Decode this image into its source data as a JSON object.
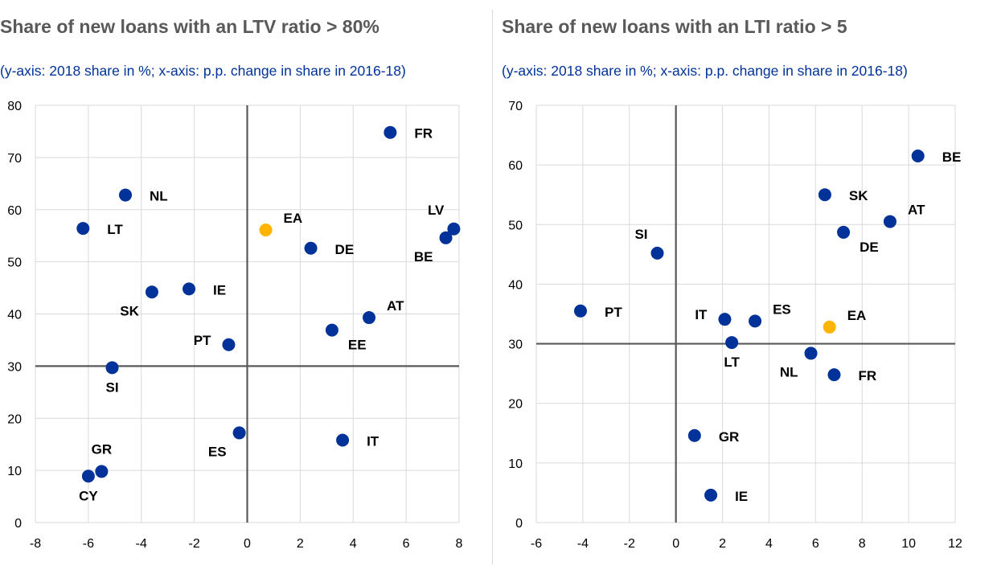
{
  "chart_data": [
    {
      "type": "scatter",
      "title": "Share of new loans with an LTV ratio > 80%",
      "subtitle": "(y-axis: 2018 share in %; x-axis: p.p. change in share in 2016-18)",
      "xlim": [
        -8,
        8
      ],
      "ylim": [
        0,
        80
      ],
      "x_ticks": [
        -8,
        -6,
        -4,
        -2,
        0,
        2,
        4,
        6,
        8
      ],
      "y_ticks": [
        0,
        10,
        20,
        30,
        40,
        50,
        60,
        70,
        80
      ],
      "grid": true,
      "reference_lines": {
        "x": 0,
        "y": 30
      },
      "colors": {
        "country": "#003299",
        "euro_area": "#FFB400",
        "grid": "#d9d9d9",
        "axis_line": "#595959"
      },
      "points": [
        {
          "label": "FR",
          "x": 5.4,
          "y": 74.8,
          "label_pos": "right"
        },
        {
          "label": "NL",
          "x": -4.6,
          "y": 62.8,
          "label_pos": "right"
        },
        {
          "label": "LT",
          "x": -6.2,
          "y": 56.4,
          "label_pos": "right"
        },
        {
          "label": "EA",
          "x": 0.7,
          "y": 56.1,
          "label_pos": "above-right",
          "highlight": true
        },
        {
          "label": "LV",
          "x": 7.8,
          "y": 56.3,
          "label_pos": "above-left"
        },
        {
          "label": "BE",
          "x": 7.5,
          "y": 54.6,
          "label_pos": "below-left"
        },
        {
          "label": "DE",
          "x": 2.4,
          "y": 52.6,
          "label_pos": "right"
        },
        {
          "label": "IE",
          "x": -2.2,
          "y": 44.8,
          "label_pos": "right"
        },
        {
          "label": "SK",
          "x": -3.6,
          "y": 44.2,
          "label_pos": "below-left"
        },
        {
          "label": "AT",
          "x": 4.6,
          "y": 39.3,
          "label_pos": "above-right"
        },
        {
          "label": "EE",
          "x": 3.2,
          "y": 36.9,
          "label_pos": "below-right"
        },
        {
          "label": "PT",
          "x": -0.7,
          "y": 34.1,
          "label_pos": "left"
        },
        {
          "label": "SI",
          "x": -5.1,
          "y": 29.7,
          "label_pos": "below"
        },
        {
          "label": "ES",
          "x": -0.3,
          "y": 17.2,
          "label_pos": "below-left"
        },
        {
          "label": "IT",
          "x": 3.6,
          "y": 15.8,
          "label_pos": "right"
        },
        {
          "label": "GR",
          "x": -5.5,
          "y": 9.8,
          "label_pos": "above"
        },
        {
          "label": "CY",
          "x": -6.0,
          "y": 8.9,
          "label_pos": "below"
        }
      ]
    },
    {
      "type": "scatter",
      "title": "Share of new loans with an LTI ratio > 5",
      "subtitle": "(y-axis: 2018 share in %; x-axis: p.p. change in share in 2016-18)",
      "xlim": [
        -6,
        12
      ],
      "ylim": [
        0,
        70
      ],
      "x_ticks": [
        -6,
        -4,
        -2,
        0,
        2,
        4,
        6,
        8,
        10,
        12
      ],
      "y_ticks": [
        0,
        10,
        20,
        30,
        40,
        50,
        60,
        70
      ],
      "grid": true,
      "reference_lines": {
        "x": 0,
        "y": 30
      },
      "colors": {
        "country": "#003299",
        "euro_area": "#FFB400",
        "grid": "#d9d9d9",
        "axis_line": "#595959"
      },
      "points": [
        {
          "label": "BE",
          "x": 10.4,
          "y": 61.5,
          "label_pos": "right"
        },
        {
          "label": "SK",
          "x": 6.4,
          "y": 55.0,
          "label_pos": "right"
        },
        {
          "label": "AT",
          "x": 9.2,
          "y": 50.5,
          "label_pos": "above-right"
        },
        {
          "label": "DE",
          "x": 7.2,
          "y": 48.7,
          "label_pos": "below-right"
        },
        {
          "label": "SI",
          "x": -0.8,
          "y": 45.2,
          "label_pos": "above-left"
        },
        {
          "label": "PT",
          "x": -4.1,
          "y": 35.5,
          "label_pos": "right"
        },
        {
          "label": "IT",
          "x": 2.1,
          "y": 34.1,
          "label_pos": "left"
        },
        {
          "label": "ES",
          "x": 3.4,
          "y": 33.8,
          "label_pos": "above-right"
        },
        {
          "label": "EA",
          "x": 6.6,
          "y": 32.8,
          "label_pos": "above-right",
          "highlight": true
        },
        {
          "label": "LT",
          "x": 2.4,
          "y": 30.2,
          "label_pos": "below"
        },
        {
          "label": "NL",
          "x": 5.8,
          "y": 28.4,
          "label_pos": "below-left"
        },
        {
          "label": "FR",
          "x": 6.8,
          "y": 24.8,
          "label_pos": "right"
        },
        {
          "label": "GR",
          "x": 0.8,
          "y": 14.6,
          "label_pos": "right"
        },
        {
          "label": "IE",
          "x": 1.5,
          "y": 4.6,
          "label_pos": "right"
        }
      ]
    }
  ]
}
